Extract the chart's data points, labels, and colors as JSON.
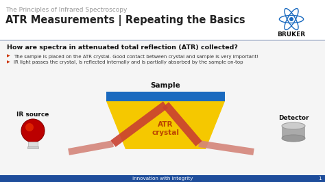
{
  "bg_color": "#ffffff",
  "header_bg": "#ffffff",
  "content_bg": "#f5f5f5",
  "footer_color": "#1e4d9b",
  "subtitle": "The Principles of Infrared Spectroscopy",
  "title": "ATR Measurements | Repeating the Basics",
  "question": "How are spectra in attenuated total reflection (ATR) collected?",
  "bullet1": "  The sample is placed on the ATR crystal. Good contact between crystal and sample is very important!",
  "bullet2": "  IR light passes the crystal, is reflected internally and is partially absorbed by the sample on-top",
  "footer_text": "Innovation with Integrity",
  "footer_page": "1",
  "sample_label": "Sample",
  "crystal_label": "ATR\ncrystal",
  "ir_label": "IR source",
  "detector_label": "Detector",
  "crystal_color": "#f5c800",
  "sample_color": "#1a6abf",
  "beam_color": "#c94030",
  "beam_outside_color": "#d4857a",
  "subtitle_color": "#999999",
  "title_color": "#222222",
  "question_color": "#111111",
  "bullet_arrow_color": "#cc3300",
  "bullet_text_color": "#333333"
}
